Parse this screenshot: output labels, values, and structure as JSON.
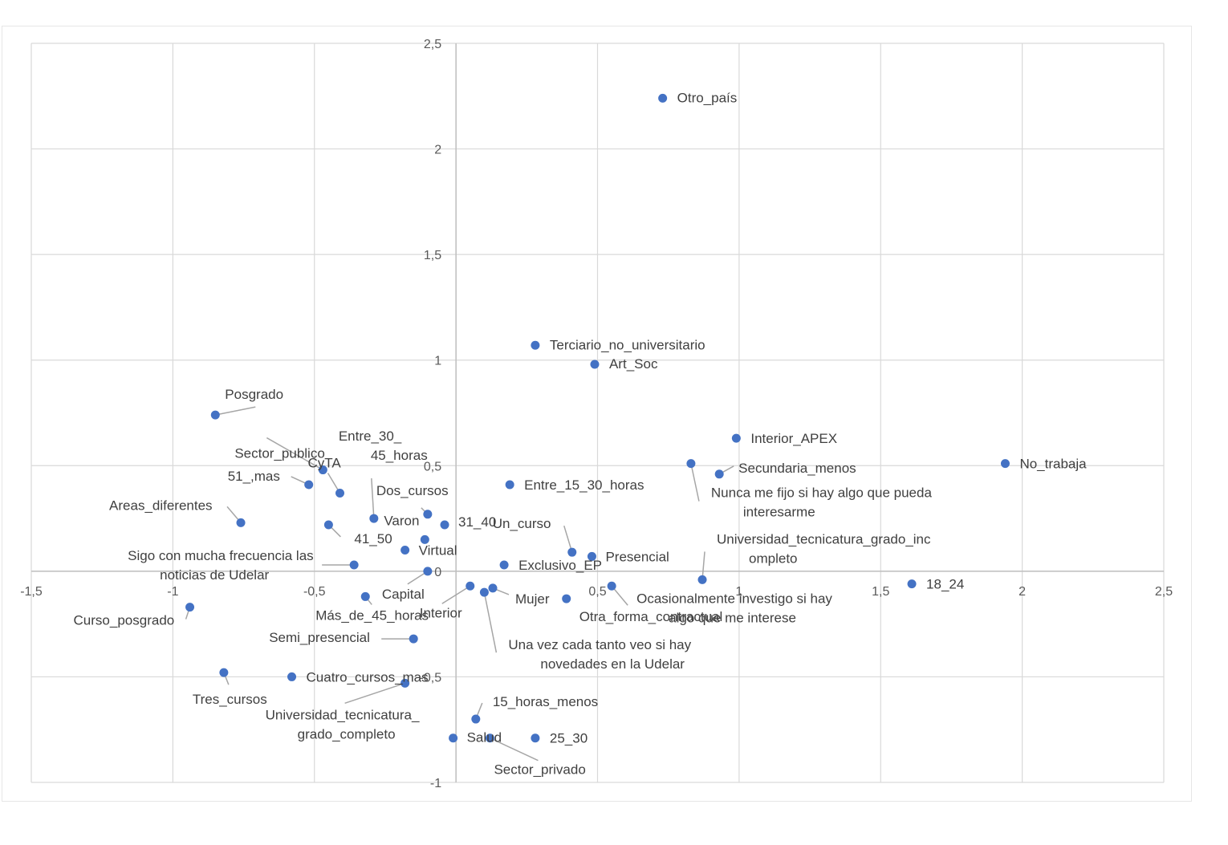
{
  "chart_data": {
    "type": "scatter",
    "title": "",
    "xlabel": "",
    "ylabel": "",
    "xlim": [
      -1.5,
      2.5
    ],
    "ylim": [
      -1,
      2.5
    ],
    "grid": true,
    "legend": "none",
    "point_color": "#4472c4",
    "leader_color": "#a6a6a6",
    "x_ticks": [
      {
        "v": -1.5,
        "label": "-1,5"
      },
      {
        "v": -1,
        "label": "-1"
      },
      {
        "v": -0.5,
        "label": "-0,5"
      },
      {
        "v": 0,
        "label": "0"
      },
      {
        "v": 0.5,
        "label": "0,5"
      },
      {
        "v": 1,
        "label": "1"
      },
      {
        "v": 1.5,
        "label": "1,5"
      },
      {
        "v": 2,
        "label": "2"
      },
      {
        "v": 2.5,
        "label": "2,5"
      }
    ],
    "y_ticks": [
      {
        "v": 2.5,
        "label": "2,5"
      },
      {
        "v": 2,
        "label": "2"
      },
      {
        "v": 1.5,
        "label": "1,5"
      },
      {
        "v": 1,
        "label": "1"
      },
      {
        "v": 0.5,
        "label": "0,5"
      },
      {
        "v": 0,
        "label": "0"
      },
      {
        "v": -0.5,
        "label": "-0,5"
      },
      {
        "v": -1,
        "label": "-1"
      }
    ],
    "points": [
      {
        "label": [
          "Otro_país"
        ],
        "x": 0.73,
        "y": 2.24
      },
      {
        "label": [
          "Terciario_no_universitario"
        ],
        "x": 0.28,
        "y": 1.07
      },
      {
        "label": [
          "Art_Soc"
        ],
        "x": 0.49,
        "y": 0.98
      },
      {
        "label": [
          "Posgrado"
        ],
        "x": -0.85,
        "y": 0.74
      },
      {
        "label": [
          "Sector_publico"
        ],
        "x": -0.47,
        "y": 0.48
      },
      {
        "label": [
          "CyTA"
        ],
        "x": -0.41,
        "y": 0.37
      },
      {
        "label": [
          "Entre_30_",
          "45_horas"
        ],
        "x": -0.29,
        "y": 0.25
      },
      {
        "label": [
          "51_,mas"
        ],
        "x": -0.52,
        "y": 0.41
      },
      {
        "label": [
          "Dos_cursos"
        ],
        "x": -0.1,
        "y": 0.27
      },
      {
        "label": [
          "Areas_diferentes"
        ],
        "x": -0.76,
        "y": 0.23
      },
      {
        "label": [
          "Varon"
        ],
        "x": -0.11,
        "y": 0.15
      },
      {
        "label": [
          "31_40"
        ],
        "x": -0.04,
        "y": 0.22
      },
      {
        "label": [
          "41_50"
        ],
        "x": -0.45,
        "y": 0.22
      },
      {
        "label": [
          "Virtual"
        ],
        "x": -0.18,
        "y": 0.1
      },
      {
        "label": [
          "Sigo con mucha frecuencia las",
          "noticias de Udelar"
        ],
        "x": -0.36,
        "y": 0.03
      },
      {
        "label": [
          "Capital"
        ],
        "x": -0.1,
        "y": 0.0
      },
      {
        "label": [
          "Entre_15_30_horas"
        ],
        "x": 0.19,
        "y": 0.41
      },
      {
        "label": [
          "Un_curso"
        ],
        "x": 0.41,
        "y": 0.09
      },
      {
        "label": [
          "Presencial"
        ],
        "x": 0.48,
        "y": 0.07
      },
      {
        "label": [
          "Exclusivo_EP"
        ],
        "x": 0.17,
        "y": 0.03
      },
      {
        "label": [
          "Interior_APEX"
        ],
        "x": 0.99,
        "y": 0.63
      },
      {
        "label": [
          "Secundaria_menos"
        ],
        "x": 0.93,
        "y": 0.46
      },
      {
        "label": [
          "Nunca me fijo si hay algo que pueda",
          "interesarme"
        ],
        "x": 0.83,
        "y": 0.51
      },
      {
        "label": [
          "No_trabaja"
        ],
        "x": 1.94,
        "y": 0.51
      },
      {
        "label": [
          "Universidad_tecnicatura_grado_inc",
          "ompleto"
        ],
        "x": 0.87,
        "y": -0.04
      },
      {
        "label": [
          "18_24"
        ],
        "x": 1.61,
        "y": -0.06
      },
      {
        "label": [
          "Más_de_45_horas"
        ],
        "x": -0.32,
        "y": -0.12
      },
      {
        "label": [
          "Interior"
        ],
        "x": 0.05,
        "y": -0.07
      },
      {
        "label": [
          "Mujer"
        ],
        "x": 0.13,
        "y": -0.08
      },
      {
        "label": [
          "Una vez cada tanto veo si hay",
          "novedades en la Udelar"
        ],
        "x": 0.1,
        "y": -0.1
      },
      {
        "label": [
          "Otra_forma_contractual"
        ],
        "x": 0.39,
        "y": -0.13
      },
      {
        "label": [
          "Ocasionalmente investigo si hay",
          "algo que me interese"
        ],
        "x": 0.55,
        "y": -0.07
      },
      {
        "label": [
          "Curso_posgrado"
        ],
        "x": -0.94,
        "y": -0.17
      },
      {
        "label": [
          "Semi_presencial"
        ],
        "x": -0.15,
        "y": -0.32
      },
      {
        "label": [
          "Tres_cursos"
        ],
        "x": -0.82,
        "y": -0.48
      },
      {
        "label": [
          "Cuatro_cursos_mas"
        ],
        "x": -0.58,
        "y": -0.5
      },
      {
        "label": [
          "Universidad_tecnicatura_",
          "grado_completo"
        ],
        "x": -0.18,
        "y": -0.53
      },
      {
        "label": [
          "15_horas_menos"
        ],
        "x": 0.07,
        "y": -0.7
      },
      {
        "label": [
          "Salud"
        ],
        "x": -0.01,
        "y": -0.79
      },
      {
        "label": [
          "25_30"
        ],
        "x": 0.28,
        "y": -0.79
      },
      {
        "label": [
          "Sector_privado"
        ],
        "x": 0.12,
        "y": -0.79
      }
    ]
  }
}
